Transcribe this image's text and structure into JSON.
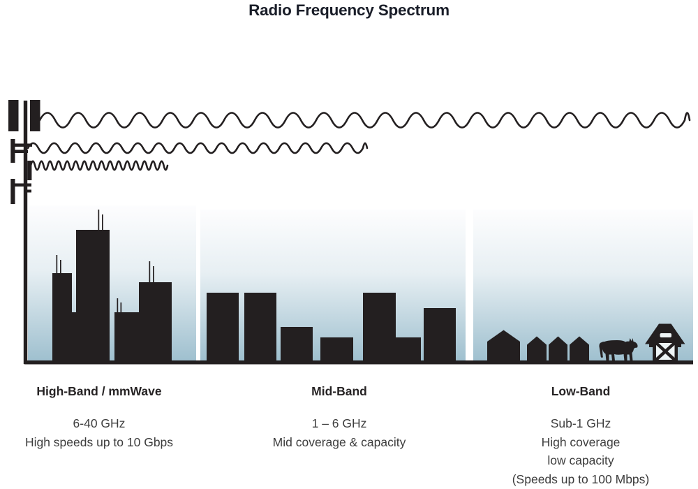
{
  "title": "Radio Frequency Spectrum",
  "bands": [
    {
      "id": "high-band",
      "heading": "High-Band / mmWave",
      "detail_lines": [
        "6-40 GHz",
        "High speeds up to 10 Gbps"
      ],
      "scene": "city-skyscrapers-with-antennas",
      "wave": "high-frequency-short-wavelength"
    },
    {
      "id": "mid-band",
      "heading": "Mid-Band",
      "detail_lines": [
        "1 – 6 GHz",
        "Mid coverage & capacity"
      ],
      "scene": "mid-rise-buildings",
      "wave": "mid-frequency-medium-wavelength"
    },
    {
      "id": "low-band",
      "heading": "Low-Band",
      "detail_lines": [
        "Sub-1 GHz",
        "High coverage",
        "low capacity",
        "(Speeds up to 100 Mbps)"
      ],
      "scene": "rural-houses-cow-barn",
      "wave": "low-frequency-long-wavelength"
    }
  ],
  "icons": [
    "cell-tower-icon",
    "low-frequency-wave-icon",
    "mid-frequency-wave-icon",
    "high-frequency-wave-icon",
    "skyscraper-icon",
    "building-icon",
    "house-icon",
    "cow-icon",
    "barn-icon"
  ],
  "colors": {
    "ink": "#231f20",
    "title_text": "#191d28",
    "body_text": "#3d3d3d",
    "sky_gradient_top": "#fdfdfe",
    "sky_gradient_bottom": "#9fc0cf"
  }
}
